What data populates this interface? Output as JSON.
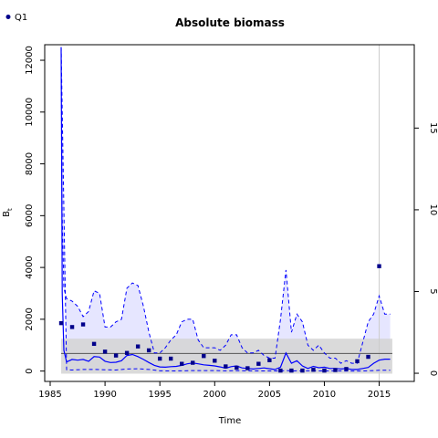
{
  "chart_data": {
    "type": "line",
    "title": "Absolute biomass",
    "xlabel": "Time",
    "ylabel": "B",
    "ylabel_subscript": "t",
    "xlim": [
      1984.5,
      2018.2
    ],
    "ylim": [
      -400,
      12600
    ],
    "y2lim": [
      -0.5,
      20.1
    ],
    "xticks": [
      1985,
      1990,
      1995,
      2000,
      2005,
      2010,
      2015
    ],
    "yticks": [
      0,
      2000,
      4000,
      6000,
      8000,
      10000,
      12000
    ],
    "y2ticks": [
      0,
      5,
      10,
      15
    ],
    "grid": false,
    "legend_position": "top-left",
    "legend": [
      {
        "label": "Q1",
        "color": "#00008B"
      }
    ],
    "colors": {
      "estimate_line": "#0000ff",
      "ci_fill": "#e6e6ff",
      "prior_band": "#d3d3d3",
      "prior_line": "#555555",
      "index_points": "#00008B",
      "marker_line": "#cccccc"
    },
    "estimate": {
      "x": [
        1986.0,
        1986.1,
        1986.25,
        1986.5,
        1987,
        1987.5,
        1988,
        1988.5,
        1989,
        1989.5,
        1990,
        1990.5,
        1991,
        1991.5,
        1992,
        1992.5,
        1993,
        1993.5,
        1994,
        1994.5,
        1995,
        1995.5,
        1996,
        1996.5,
        1997,
        1997.5,
        1998,
        1998.5,
        1999,
        1999.5,
        2000,
        2000.5,
        2001,
        2001.5,
        2002,
        2002.5,
        2003,
        2003.5,
        2004,
        2004.5,
        2005,
        2005.5,
        2006,
        2006.5,
        2007,
        2007.5,
        2008,
        2008.5,
        2009,
        2009.5,
        2010,
        2010.5,
        2011,
        2011.5,
        2012,
        2012.5,
        2013,
        2013.5,
        2014,
        2014.5,
        2015,
        2015.5,
        2016
      ],
      "y": [
        12500,
        3000,
        800,
        350,
        450,
        420,
        450,
        380,
        560,
        540,
        380,
        330,
        340,
        400,
        600,
        640,
        560,
        450,
        330,
        220,
        160,
        150,
        170,
        180,
        220,
        280,
        310,
        280,
        240,
        220,
        200,
        160,
        110,
        170,
        200,
        120,
        100,
        80,
        100,
        120,
        90,
        60,
        150,
        700,
        300,
        400,
        200,
        100,
        180,
        130,
        150,
        100,
        100,
        80,
        100,
        60,
        60,
        100,
        140,
        300,
        420,
        460,
        460
      ]
    },
    "upper": {
      "x": [
        1986.0,
        1986.1,
        1986.25,
        1986.5,
        1987,
        1987.5,
        1988,
        1988.5,
        1989,
        1989.5,
        1990,
        1990.5,
        1991,
        1991.5,
        1992,
        1992.5,
        1993,
        1993.5,
        1994,
        1994.5,
        1995,
        1995.5,
        1996,
        1996.5,
        1997,
        1997.5,
        1998,
        1998.5,
        1999,
        1999.5,
        2000,
        2000.5,
        2001,
        2001.5,
        2002,
        2002.5,
        2003,
        2003.5,
        2004,
        2004.5,
        2005,
        2005.5,
        2006,
        2006.5,
        2007,
        2007.5,
        2008,
        2008.5,
        2009,
        2009.5,
        2010,
        2010.5,
        2011,
        2011.5,
        2012,
        2012.5,
        2013,
        2013.5,
        2014,
        2014.5,
        2015,
        2015.5,
        2016
      ],
      "y": [
        12500,
        6000,
        3200,
        2800,
        2700,
        2500,
        2100,
        2300,
        3100,
        3000,
        1700,
        1700,
        1900,
        2000,
        3200,
        3400,
        3300,
        2500,
        1500,
        700,
        700,
        900,
        1200,
        1400,
        1900,
        2000,
        2000,
        1200,
        900,
        900,
        900,
        800,
        1000,
        1400,
        1400,
        900,
        700,
        700,
        800,
        600,
        500,
        500,
        2000,
        3900,
        1500,
        2200,
        1900,
        1000,
        800,
        1000,
        700,
        500,
        500,
        300,
        400,
        300,
        300,
        1100,
        1900,
        2200,
        2900,
        2200,
        2200
      ]
    },
    "lower": {
      "x": [
        1986.0,
        1986.5,
        1987,
        1988,
        1989,
        1990,
        1991,
        1992,
        1993,
        1994,
        1995,
        1996,
        1997,
        1998,
        1999,
        2000,
        2001,
        2002,
        2003,
        2004,
        2005,
        2006,
        2006.5,
        2007,
        2007.5,
        2008,
        2009,
        2010,
        2011,
        2012,
        2013,
        2014,
        2015,
        2016
      ],
      "y": [
        12500,
        50,
        40,
        60,
        60,
        50,
        40,
        80,
        90,
        60,
        10,
        5,
        10,
        20,
        20,
        20,
        10,
        15,
        8,
        5,
        5,
        5,
        20,
        5,
        10,
        5,
        8,
        5,
        5,
        3,
        3,
        10,
        30,
        30
      ]
    },
    "index": {
      "name": "Q1",
      "x": [
        1986,
        1987,
        1988,
        1989,
        1990,
        1991,
        1992,
        1993,
        1994,
        1995,
        1996,
        1997,
        1998,
        1999,
        2000,
        2001,
        2002,
        2003,
        2004,
        2005,
        2006,
        2007,
        2008,
        2009,
        2010,
        2011,
        2012,
        2013,
        2014,
        2015
      ],
      "y": [
        1850,
        1700,
        1800,
        1050,
        750,
        600,
        700,
        950,
        800,
        480,
        480,
        280,
        320,
        580,
        400,
        180,
        130,
        110,
        280,
        420,
        20,
        20,
        20,
        50,
        20,
        40,
        80,
        380,
        550,
        4050
      ]
    },
    "prior_band": {
      "x": [
        1986,
        2016.2
      ],
      "lower": -100,
      "upper": 1250,
      "mid": 680
    },
    "vertical_marker_x": 2015
  }
}
